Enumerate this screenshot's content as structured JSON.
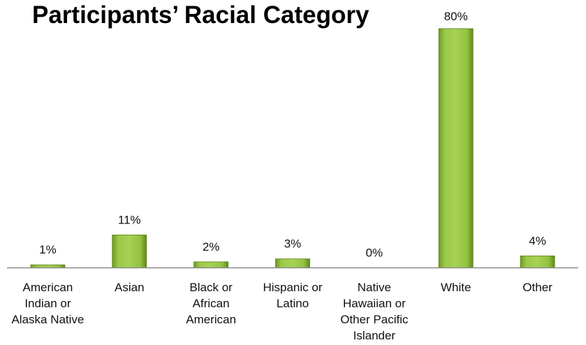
{
  "chart_data": {
    "type": "bar",
    "title": "Participants’ Racial Category",
    "categories": [
      [
        "American",
        "Indian or",
        "Alaska Native"
      ],
      [
        "Asian"
      ],
      [
        "Black or",
        "African",
        "American"
      ],
      [
        "Hispanic or",
        "Latino"
      ],
      [
        "Native",
        "Hawaiian or",
        "Other Pacific",
        "Islander"
      ],
      [
        "White"
      ],
      [
        "Other"
      ]
    ],
    "values": [
      1,
      11,
      2,
      3,
      0,
      80,
      4
    ],
    "value_labels": [
      "1%",
      "11%",
      "2%",
      "3%",
      "0%",
      "80%",
      "4%"
    ],
    "ylim": [
      0,
      80
    ],
    "grid": false,
    "legend": "none",
    "bar_color": "#8cb83a",
    "axis_color": "#8c8c8c"
  }
}
